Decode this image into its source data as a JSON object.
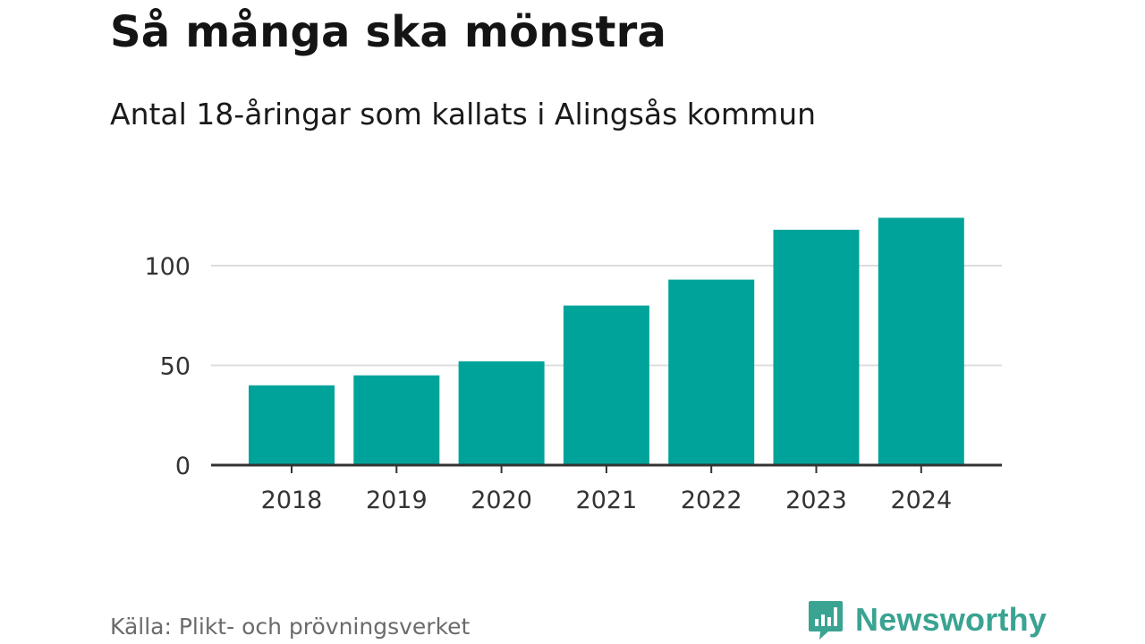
{
  "title": "Så många ska mönstra",
  "subtitle": "Antal 18-åringar som kallats i Alingsås kommun",
  "source": "Källa: Plikt- och prövningsverket",
  "brand": {
    "name": "Newsworthy",
    "icon": "newsworthy-logo-icon",
    "color": "#3aa392"
  },
  "colors": {
    "bar": "#00a39a",
    "grid": "#dddddd",
    "axis": "#333333"
  },
  "chart_data": {
    "type": "bar",
    "categories": [
      "2018",
      "2019",
      "2020",
      "2021",
      "2022",
      "2023",
      "2024"
    ],
    "values": [
      40,
      45,
      52,
      80,
      93,
      118,
      124
    ],
    "yticks": [
      0,
      50,
      100
    ],
    "ylim": [
      0,
      125
    ],
    "grid": true,
    "title": "Så många ska mönstra",
    "subtitle": "Antal 18-åringar som kallats i Alingsås kommun",
    "xlabel": "",
    "ylabel": ""
  }
}
